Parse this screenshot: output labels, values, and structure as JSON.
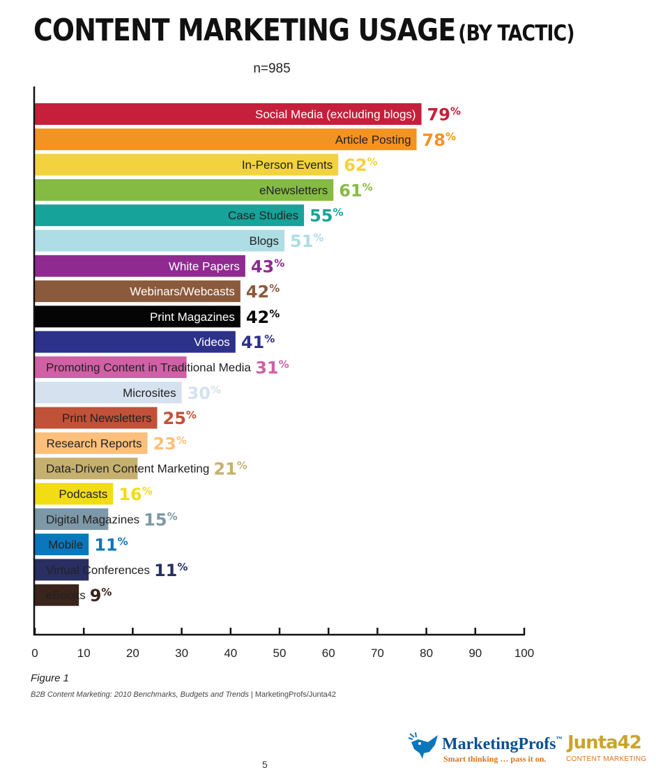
{
  "header": {
    "title_main": "CONTENT MARKETING USAGE",
    "title_sub": "(BY TACTIC)",
    "sample_size": "n=985"
  },
  "chart_data": {
    "type": "bar",
    "orientation": "horizontal",
    "value_suffix": "%",
    "categories": [
      "Social Media (excluding blogs)",
      "Article Posting",
      "In-Person Events",
      "eNewsletters",
      "Case Studies",
      "Blogs",
      "White Papers",
      "Webinars/Webcasts",
      "Print Magazines",
      "Videos",
      "Promoting Content in Traditional Media",
      "Microsites",
      "Print Newsletters",
      "Research Reports",
      "Data-Driven Content Marketing",
      "Podcasts",
      "Digital Magazines",
      "Mobile",
      "Virtual Conferences",
      "eBooks"
    ],
    "values": [
      79,
      78,
      62,
      61,
      55,
      51,
      43,
      42,
      42,
      41,
      31,
      30,
      25,
      23,
      21,
      16,
      15,
      11,
      11,
      9
    ],
    "colors": [
      "#c51f3b",
      "#f39321",
      "#f2d23d",
      "#85bb43",
      "#16a399",
      "#aedde5",
      "#8e2a90",
      "#8b5a3c",
      "#050505",
      "#2c3189",
      "#d160a6",
      "#d5e1ef",
      "#c15137",
      "#fdc07c",
      "#c6b06e",
      "#f2dc14",
      "#7d98a7",
      "#0a77bc",
      "#292f62",
      "#3a241c"
    ],
    "label_colors": [
      "#ffffff",
      "#222222",
      "#222222",
      "#222222",
      "#222222",
      "#222222",
      "#ffffff",
      "#ffffff",
      "#ffffff",
      "#ffffff",
      "#222222",
      "#222222",
      "#222222",
      "#222222",
      "#222222",
      "#222222",
      "#222222",
      "#222222",
      "#222222",
      "#222222"
    ],
    "xlim": [
      0,
      100
    ],
    "xticks": [
      0,
      10,
      20,
      30,
      40,
      50,
      60,
      70,
      80,
      90,
      100
    ],
    "grid": false,
    "legend": "none"
  },
  "caption": {
    "figure": "Figure 1",
    "source_title": "B2B Content Marketing: 2010 Benchmarks, Budgets and Trends",
    "source_sep": " | ",
    "source_org": "MarketingProfs/Junta42"
  },
  "footer": {
    "page_number": "5",
    "logo_marketingprofs": "MarketingProfs",
    "logo_marketingprofs_tm": "™",
    "logo_marketingprofs_tagline": "Smart thinking … pass it on.",
    "logo_junta_word": "Junta",
    "logo_junta_num": "42",
    "logo_junta_tagline": "CONTENT MARKETING",
    "colors": {
      "mp_blue": "#0a4f8f",
      "accent_orange": "#d9731c",
      "junta_gold": "#c9a42c"
    }
  }
}
